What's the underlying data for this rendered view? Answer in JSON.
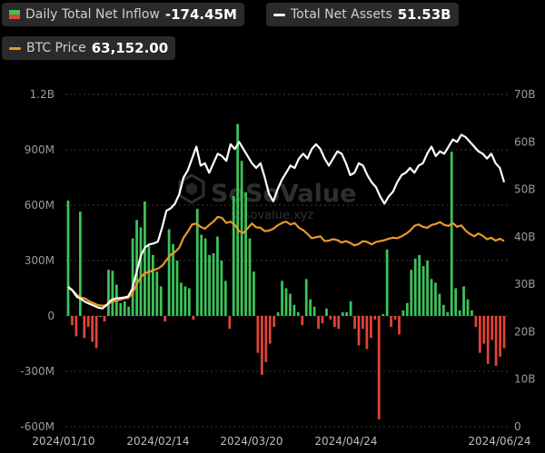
{
  "legend": {
    "inflow": {
      "label": "Daily Total Net Inflow",
      "value": "-174.45M"
    },
    "assets": {
      "label": "Total Net Assets",
      "value": "51.53B"
    },
    "btc": {
      "label": "BTC Price",
      "value": "63,152.00"
    }
  },
  "watermark": {
    "brand": "SoSoValue",
    "url": "sosovalue.xyz"
  },
  "colors": {
    "positive": "#3cc35a",
    "negative": "#e04438",
    "net_assets": "#ffffff",
    "btc_price": "#e8982a",
    "background": "#000000",
    "grid": "#3a3a3a"
  },
  "chart_data": {
    "type": "bar",
    "left_axis": {
      "ticks": [
        "1.2B",
        "900M",
        "600M",
        "300M",
        "0",
        "-300M",
        "-600M"
      ],
      "ylim": [
        -600,
        1200
      ],
      "unit": "M"
    },
    "right_axis": {
      "ticks": [
        "70B",
        "60B",
        "50B",
        "40B",
        "30B",
        "20B",
        "10B",
        "0"
      ],
      "ylim": [
        0,
        70
      ],
      "unit": "B"
    },
    "x_ticks": [
      "2024/01/10",
      "2024/02/14",
      "2024/03/20",
      "2024/04/24",
      "2024/06/24"
    ],
    "grid": true,
    "series": [
      {
        "name": "Daily Total Net Inflow",
        "type": "bar",
        "values": [
          625,
          -50,
          -110,
          565,
          -120,
          -60,
          -140,
          -175,
          0,
          -30,
          250,
          245,
          170,
          70,
          80,
          50,
          420,
          520,
          480,
          620,
          380,
          330,
          240,
          160,
          -30,
          470,
          390,
          300,
          180,
          160,
          150,
          -20,
          580,
          440,
          420,
          330,
          340,
          430,
          300,
          190,
          -70,
          650,
          1040,
          840,
          670,
          420,
          240,
          -200,
          -320,
          -250,
          -150,
          -60,
          20,
          190,
          150,
          120,
          60,
          20,
          -50,
          200,
          90,
          50,
          -70,
          -40,
          40,
          -20,
          -60,
          -70,
          20,
          20,
          80,
          -70,
          -160,
          -70,
          -180,
          -120,
          -20,
          -560,
          10,
          360,
          -60,
          -20,
          -100,
          30,
          70,
          250,
          310,
          330,
          270,
          300,
          200,
          180,
          120,
          60,
          20,
          890,
          150,
          30,
          160,
          90,
          30,
          -60,
          -200,
          -150,
          -260,
          -130,
          -270,
          -220,
          -175
        ]
      },
      {
        "name": "Total Net Assets",
        "type": "line",
        "axis": "right",
        "values": [
          29.5,
          28.7,
          27.4,
          26.9,
          26.3,
          25.9,
          25.5,
          25.1,
          24.9,
          25.6,
          26.6,
          27.0,
          27.1,
          27.2,
          27.4,
          29.0,
          32.5,
          36.0,
          37.8,
          38.4,
          38.6,
          39.0,
          42.0,
          45.5,
          46.0,
          47.0,
          49.0,
          52.5,
          54.0,
          56.5,
          59.0,
          55.0,
          55.5,
          53.5,
          55.5,
          57.5,
          57.0,
          56.0,
          59.5,
          58.5,
          60.0,
          58.5,
          57.0,
          55.5,
          54.5,
          55.5,
          52.5,
          49.0,
          47.5,
          50.0,
          52.0,
          53.5,
          55.0,
          54.5,
          56.5,
          57.5,
          56.5,
          58.5,
          59.5,
          58.5,
          56.5,
          55.0,
          56.5,
          58.0,
          57.5,
          55.5,
          53.0,
          53.5,
          55.5,
          55.0,
          53.0,
          51.5,
          50.5,
          48.5,
          47.0,
          48.5,
          49.5,
          51.5,
          53.0,
          53.5,
          54.5,
          53.5,
          55.0,
          55.5,
          57.5,
          59.0,
          57.0,
          58.0,
          57.5,
          59.0,
          60.5,
          60.0,
          61.5,
          61.0,
          60.0,
          59.0,
          58.0,
          57.5,
          56.5,
          57.5,
          55.5,
          54.5,
          51.5
        ]
      },
      {
        "name": "BTC Price",
        "type": "line",
        "axis": "right",
        "values": [
          29.2,
          28.8,
          27.8,
          27.2,
          27.0,
          26.4,
          26.0,
          25.6,
          25.5,
          25.6,
          26.2,
          26.5,
          26.7,
          27.0,
          27.1,
          28.0,
          30.0,
          31.5,
          32.4,
          32.6,
          33.0,
          33.3,
          33.9,
          35.1,
          36.2,
          36.8,
          37.7,
          39.8,
          41.1,
          42.6,
          42.8,
          42.1,
          41.7,
          42.5,
          43.2,
          44.2,
          44.0,
          42.9,
          43.2,
          42.5,
          41.2,
          40.8,
          41.8,
          42.8,
          42.0,
          41.9,
          41.2,
          41.3,
          41.7,
          42.4,
          42.9,
          43.2,
          42.6,
          42.9,
          41.9,
          41.4,
          40.6,
          39.7,
          39.9,
          40.1,
          39.1,
          39.2,
          39.5,
          39.3,
          38.8,
          39.1,
          38.7,
          38.2,
          38.5,
          39.1,
          38.9,
          38.4,
          38.9,
          39.1,
          39.3,
          39.6,
          39.8,
          39.7,
          40.1,
          40.6,
          41.3,
          42.3,
          42.6,
          42.1,
          41.9,
          42.5,
          42.7,
          43.1,
          42.5,
          42.3,
          42.9,
          42.1,
          42.4,
          41.3,
          40.6,
          40.1,
          40.7,
          40.2,
          39.5,
          39.8,
          39.2,
          39.6,
          39.1
        ]
      }
    ]
  }
}
